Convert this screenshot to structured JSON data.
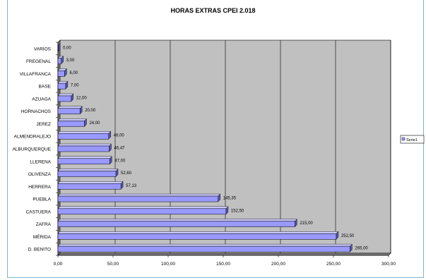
{
  "chart_data": {
    "type": "bar",
    "orientation": "horizontal",
    "title": "HORAS EXTRAS CPEI 2.018",
    "categories": [
      "D. BENITO",
      "MÉRIDA",
      "ZAFRA",
      "CASTUERA",
      "PUEBLA",
      "HERRERA",
      "OLIVENZA",
      "LLERENA",
      "ALBURQUERQUE",
      "ALMENDRALEJO",
      "JEREZ",
      "HORNACHOS",
      "AZUAGA",
      "BASE",
      "VILLAFRANCA",
      "FREGENAL",
      "VARIOS"
    ],
    "series": [
      {
        "name": "Serie1",
        "values": [
          265.0,
          252.5,
          215.0,
          152.5,
          145.35,
          57.13,
          52.6,
          47.0,
          46.47,
          46.0,
          24.0,
          20.0,
          12.0,
          7.0,
          6.0,
          3.0,
          0.0
        ],
        "labels": [
          "265,00",
          "252,50",
          "215,00",
          "152,50",
          "145,35",
          "57,13",
          "52,60",
          "47,00",
          "46,47",
          "46,00",
          "24,00",
          "20,00",
          "12,00",
          "7,00",
          "6,00",
          "3,00",
          "0,00"
        ]
      }
    ],
    "xlim": [
      0,
      300
    ],
    "xticks": [
      0,
      50,
      100,
      150,
      200,
      250,
      300
    ],
    "xtick_labels": [
      "0,00",
      "50,00",
      "100,00",
      "150,00",
      "200,00",
      "250,00",
      "300,00"
    ],
    "grid": true,
    "legend_position": "right",
    "colors": {
      "bar": "#9999ff",
      "plot_bg": "#c0c0c0",
      "grid": "#000000"
    }
  }
}
